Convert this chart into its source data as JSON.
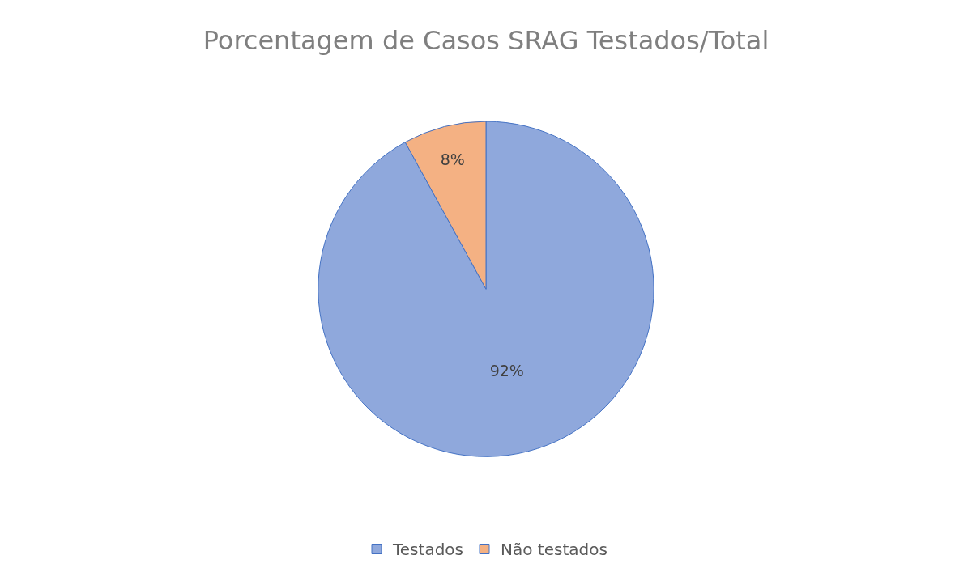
{
  "chart_data": {
    "type": "pie",
    "title": "Porcentagem de Casos SRAG Testados/Total",
    "categories": [
      "Testados",
      "Não testados"
    ],
    "values": [
      92,
      8
    ],
    "colors": [
      "#8fa8dc",
      "#f4b183"
    ],
    "value_labels": [
      "92%",
      "8%"
    ],
    "legend": "bottom"
  }
}
